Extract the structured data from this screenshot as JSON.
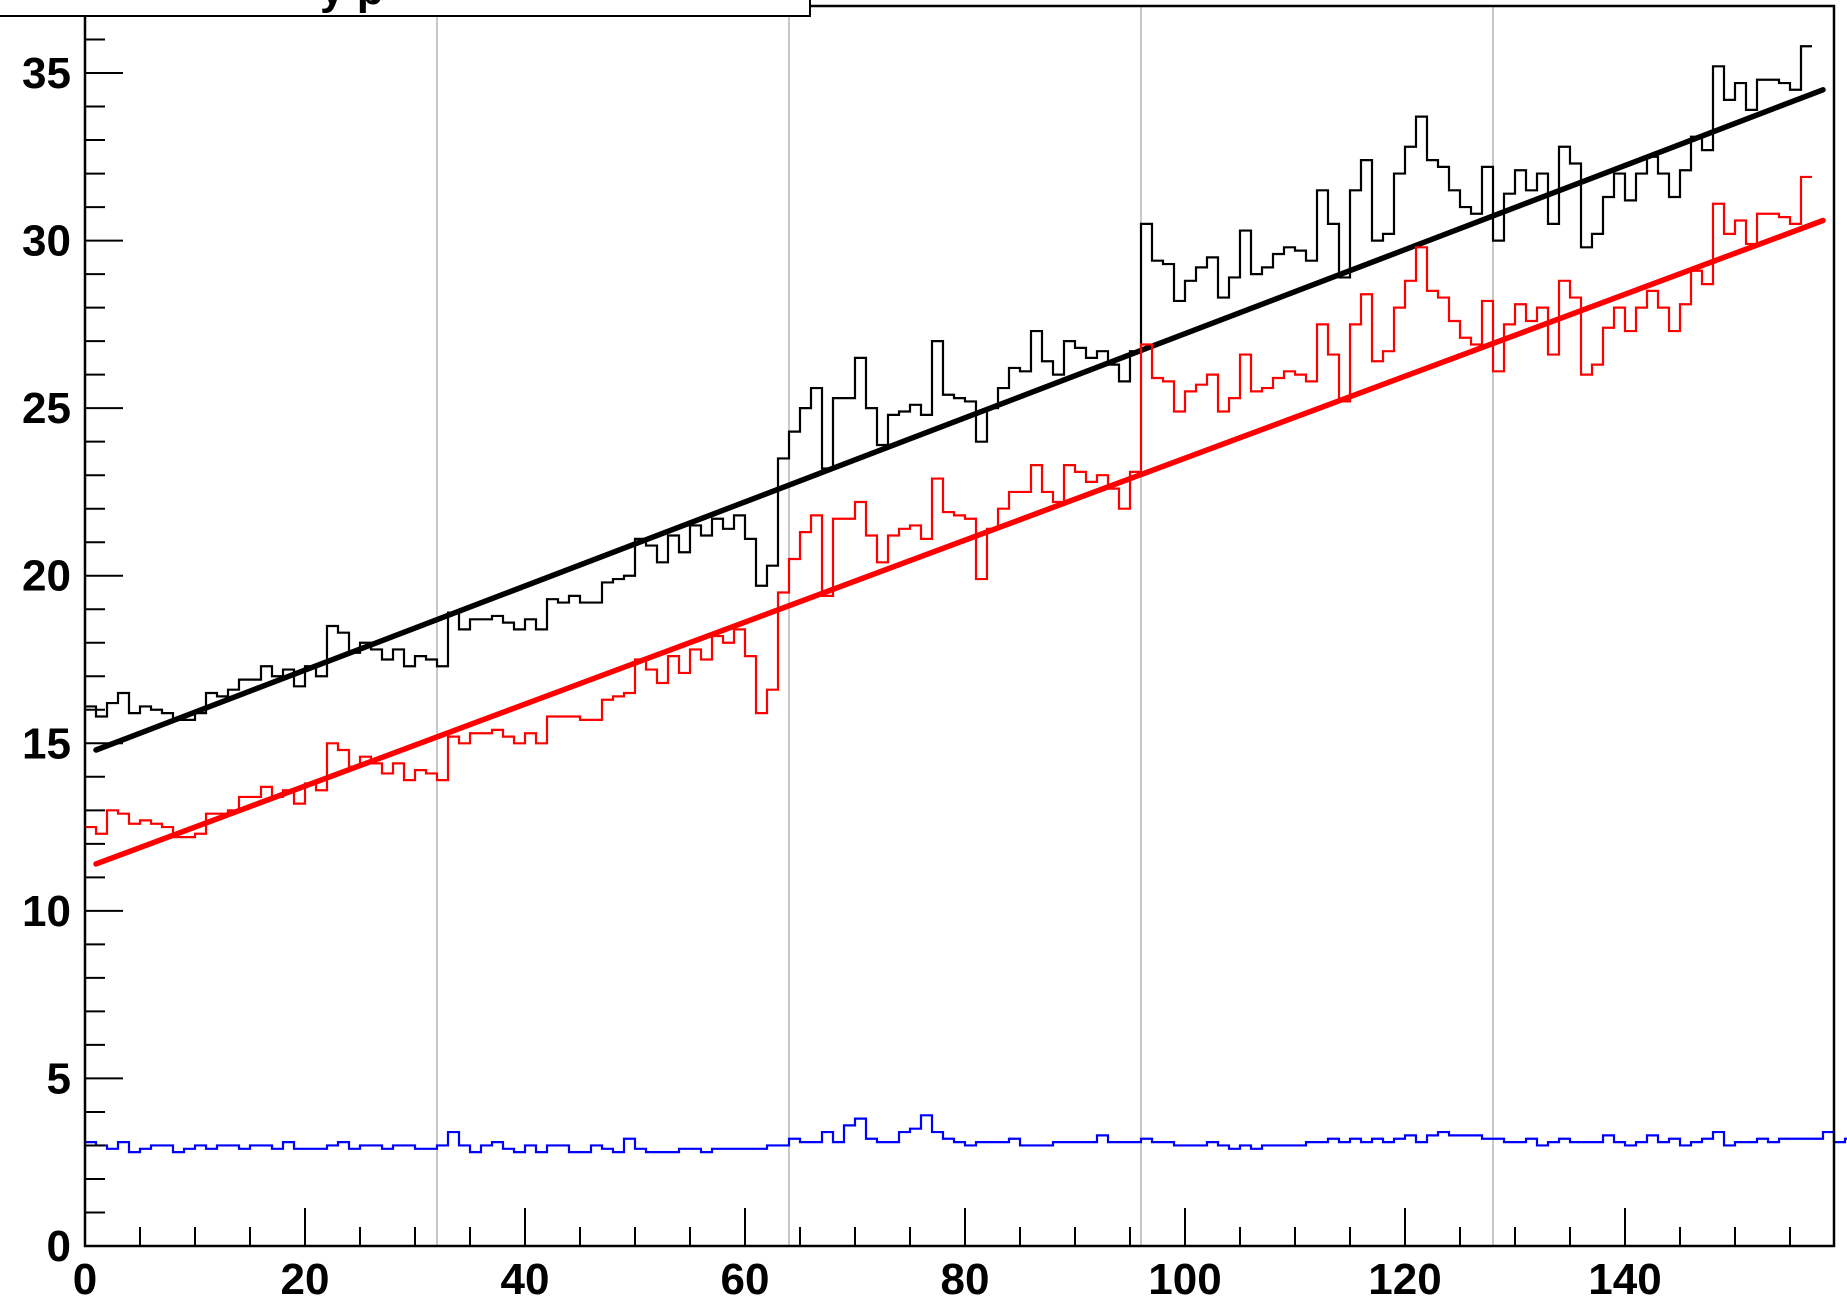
{
  "chart_data": {
    "type": "line",
    "title": "",
    "title_box_fragment": "y  p",
    "xlabel": "",
    "ylabel": "",
    "xlim": [
      0,
      159
    ],
    "ylim": [
      0,
      37
    ],
    "x_ticks": [
      0,
      20,
      40,
      60,
      80,
      100,
      120,
      140
    ],
    "x_tick_labels": [
      "0",
      "20",
      "40",
      "60",
      "80",
      "100",
      "120",
      "140"
    ],
    "y_ticks": [
      0,
      5,
      10,
      15,
      20,
      25,
      30,
      35
    ],
    "y_tick_labels": [
      "0",
      "5",
      "10",
      "15",
      "20",
      "25",
      "30",
      "35"
    ],
    "vertical_grid_x": [
      32,
      64,
      96,
      128
    ],
    "grid": "vertical only",
    "legend": "none",
    "series": [
      {
        "kind": "histogram",
        "color": "#000000",
        "values": [
          16.1,
          15.8,
          16.2,
          16.5,
          15.9,
          16.1,
          16.0,
          15.9,
          15.7,
          15.7,
          15.9,
          16.5,
          16.4,
          16.6,
          16.9,
          16.9,
          17.3,
          17.0,
          17.2,
          16.7,
          17.3,
          17.0,
          18.5,
          18.3,
          17.7,
          18.0,
          17.8,
          17.5,
          17.8,
          17.3,
          17.6,
          17.5,
          17.3,
          18.9,
          18.4,
          18.7,
          18.7,
          18.8,
          18.6,
          18.4,
          18.7,
          18.4,
          19.3,
          19.2,
          19.4,
          19.2,
          19.2,
          19.8,
          19.9,
          20.0,
          21.1,
          20.9,
          20.4,
          21.2,
          20.7,
          21.5,
          21.2,
          21.7,
          21.4,
          21.8,
          21.1,
          19.7,
          20.3,
          23.5,
          24.3,
          25.0,
          25.6,
          23.2,
          25.3,
          25.3,
          26.5,
          25.0,
          23.9,
          24.8,
          24.9,
          25.1,
          24.8,
          27.0,
          25.4,
          25.3,
          25.2,
          24.0,
          25.0,
          25.6,
          26.2,
          26.1,
          27.3,
          26.4,
          26.0,
          27.0,
          26.8,
          26.5,
          26.7,
          26.3,
          25.8,
          26.7,
          30.5,
          29.4,
          29.3,
          28.2,
          28.8,
          29.2,
          29.5,
          28.3,
          28.9,
          30.3,
          29.0,
          29.2,
          29.6,
          29.8,
          29.7,
          29.4,
          31.5,
          30.5,
          28.9,
          31.5,
          32.4,
          30.0,
          30.2,
          32.0,
          32.8,
          33.7,
          32.4,
          32.2,
          31.5,
          31.0,
          30.8,
          32.2,
          30.0,
          31.4,
          32.1,
          31.5,
          32.0,
          30.5,
          32.8,
          32.3,
          29.8,
          30.2,
          31.3,
          32.0,
          31.2,
          32.0,
          32.5,
          32.0,
          31.3,
          32.1,
          33.1,
          32.7,
          35.2,
          34.2,
          34.7,
          33.9,
          34.8,
          34.8,
          34.7,
          34.5,
          35.8
        ]
      },
      {
        "kind": "fit",
        "color": "#000000",
        "x": [
          1,
          158
        ],
        "y": [
          14.8,
          34.5
        ]
      },
      {
        "kind": "histogram",
        "color": "#ff0000",
        "values": [
          12.5,
          12.3,
          13.0,
          12.9,
          12.6,
          12.7,
          12.6,
          12.5,
          12.2,
          12.2,
          12.3,
          12.9,
          12.9,
          13.0,
          13.4,
          13.4,
          13.7,
          13.4,
          13.6,
          13.2,
          13.8,
          13.6,
          15.0,
          14.8,
          14.3,
          14.6,
          14.4,
          14.1,
          14.4,
          13.9,
          14.2,
          14.1,
          13.9,
          15.2,
          15.0,
          15.3,
          15.3,
          15.4,
          15.2,
          15.0,
          15.3,
          15.0,
          15.8,
          15.8,
          15.8,
          15.7,
          15.7,
          16.3,
          16.4,
          16.5,
          17.5,
          17.2,
          16.8,
          17.6,
          17.1,
          17.8,
          17.5,
          18.2,
          18.0,
          18.4,
          17.6,
          15.9,
          16.6,
          19.5,
          20.5,
          21.3,
          21.8,
          19.4,
          21.7,
          21.7,
          22.2,
          21.2,
          20.4,
          21.2,
          21.4,
          21.5,
          21.1,
          22.9,
          21.9,
          21.8,
          21.7,
          19.9,
          21.4,
          22.0,
          22.5,
          22.5,
          23.3,
          22.5,
          22.2,
          23.3,
          23.1,
          22.8,
          23.0,
          22.6,
          22.0,
          23.1,
          26.9,
          25.9,
          25.8,
          24.9,
          25.5,
          25.7,
          26.0,
          24.9,
          25.3,
          26.6,
          25.5,
          25.6,
          25.9,
          26.1,
          26.0,
          25.8,
          27.5,
          26.6,
          25.2,
          27.5,
          28.4,
          26.4,
          26.7,
          28.0,
          28.8,
          29.8,
          28.5,
          28.3,
          27.6,
          27.1,
          26.9,
          28.2,
          26.1,
          27.5,
          28.1,
          27.6,
          28.0,
          26.6,
          28.8,
          28.3,
          26.0,
          26.3,
          27.4,
          28.0,
          27.3,
          28.0,
          28.5,
          28.0,
          27.3,
          28.1,
          29.1,
          28.7,
          31.1,
          30.2,
          30.6,
          29.9,
          30.8,
          30.8,
          30.7,
          30.5,
          31.9
        ]
      },
      {
        "kind": "fit",
        "color": "#ff0000",
        "x": [
          1,
          158
        ],
        "y": [
          11.4,
          30.6
        ]
      },
      {
        "kind": "histogram",
        "color": "#0000ff",
        "values": [
          3.1,
          3.0,
          2.9,
          3.1,
          2.8,
          2.9,
          3.0,
          3.0,
          2.8,
          2.9,
          3.0,
          2.9,
          3.0,
          3.0,
          2.9,
          3.0,
          3.0,
          2.9,
          3.1,
          2.9,
          2.9,
          2.9,
          3.0,
          3.1,
          2.9,
          3.0,
          3.0,
          2.9,
          3.0,
          3.0,
          2.9,
          2.9,
          3.0,
          3.4,
          3.0,
          2.8,
          3.0,
          3.1,
          2.9,
          2.8,
          3.0,
          2.8,
          3.0,
          3.0,
          2.8,
          2.8,
          3.0,
          2.9,
          2.8,
          3.2,
          2.9,
          2.8,
          2.8,
          2.8,
          2.9,
          2.9,
          2.8,
          2.9,
          2.9,
          2.9,
          2.9,
          2.9,
          3.0,
          3.0,
          3.2,
          3.1,
          3.1,
          3.4,
          3.1,
          3.6,
          3.8,
          3.2,
          3.1,
          3.1,
          3.4,
          3.5,
          3.9,
          3.4,
          3.2,
          3.1,
          3.0,
          3.1,
          3.1,
          3.1,
          3.2,
          3.0,
          3.0,
          3.0,
          3.1,
          3.1,
          3.1,
          3.1,
          3.3,
          3.1,
          3.1,
          3.1,
          3.2,
          3.1,
          3.1,
          3.0,
          3.0,
          3.0,
          3.1,
          3.0,
          2.9,
          3.0,
          2.9,
          3.0,
          3.0,
          3.0,
          3.0,
          3.1,
          3.1,
          3.2,
          3.1,
          3.2,
          3.1,
          3.2,
          3.1,
          3.2,
          3.3,
          3.1,
          3.3,
          3.4,
          3.3,
          3.3,
          3.3,
          3.2,
          3.2,
          3.1,
          3.1,
          3.2,
          3.0,
          3.1,
          3.2,
          3.1,
          3.1,
          3.1,
          3.3,
          3.1,
          3.0,
          3.1,
          3.3,
          3.1,
          3.2,
          3.0,
          3.1,
          3.2,
          3.4,
          3.0,
          3.1,
          3.1,
          3.2,
          3.1,
          3.2,
          3.2,
          3.2,
          3.2,
          3.4,
          3.1,
          3.2
        ]
      }
    ]
  }
}
